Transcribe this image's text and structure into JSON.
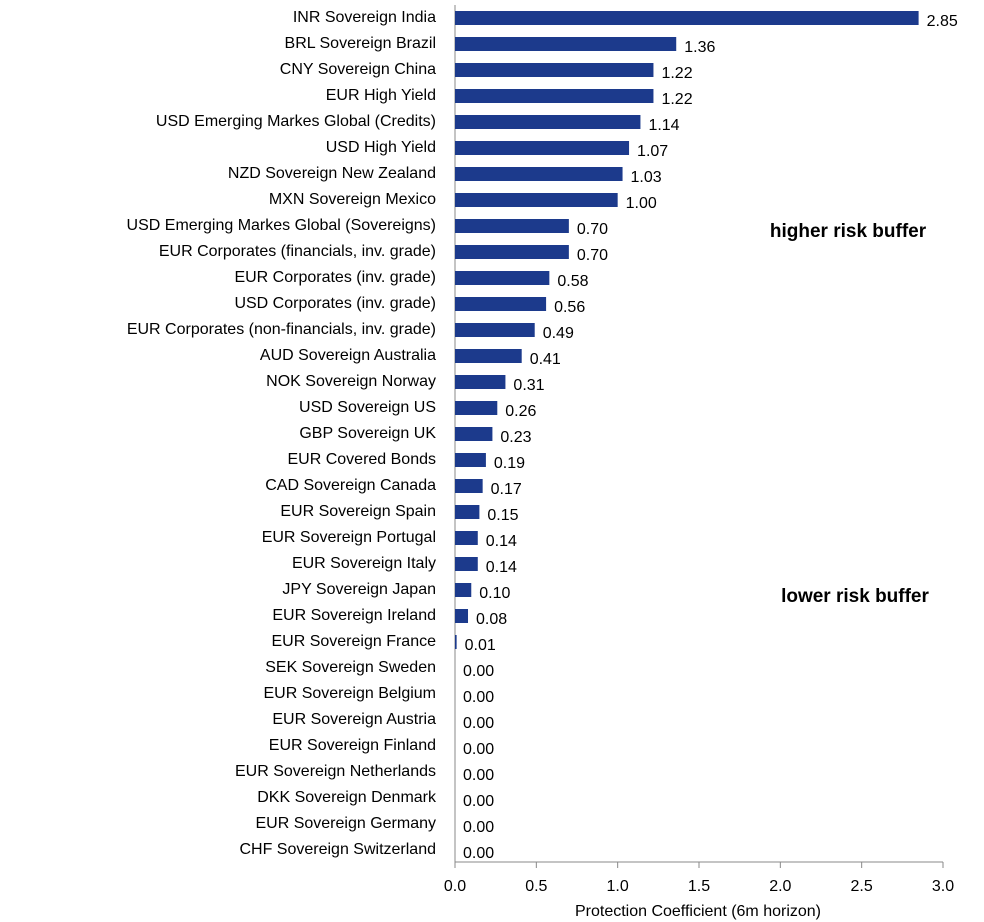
{
  "chart_data": {
    "type": "hbar",
    "categories": [
      "INR Sovereign India",
      "BRL Sovereign Brazil",
      "CNY Sovereign China",
      "EUR High Yield",
      "USD Emerging Markes Global (Credits)",
      "USD High Yield",
      "NZD Sovereign New Zealand",
      "MXN Sovereign Mexico",
      "USD Emerging Markes Global (Sovereigns)",
      "EUR Corporates (financials, inv. grade)",
      "EUR Corporates (inv. grade)",
      "USD Corporates (inv. grade)",
      "EUR Corporates (non-financials, inv. grade)",
      "AUD Sovereign Australia",
      "NOK Sovereign Norway",
      "USD Sovereign US",
      "GBP Sovereign UK",
      "EUR Covered Bonds",
      "CAD Sovereign Canada",
      "EUR Sovereign Spain",
      "EUR Sovereign Portugal",
      "EUR Sovereign Italy",
      "JPY Sovereign Japan",
      "EUR Sovereign Ireland",
      "EUR Sovereign France",
      "SEK Sovereign Sweden",
      "EUR Sovereign Belgium",
      "EUR Sovereign Austria",
      "EUR Sovereign Finland",
      "EUR Sovereign Netherlands",
      "DKK Sovereign Denmark",
      "EUR Sovereign Germany",
      "CHF Sovereign Switzerland"
    ],
    "values": [
      2.85,
      1.36,
      1.22,
      1.22,
      1.14,
      1.07,
      1.03,
      1.0,
      0.7,
      0.7,
      0.58,
      0.56,
      0.49,
      0.41,
      0.31,
      0.26,
      0.23,
      0.19,
      0.17,
      0.15,
      0.14,
      0.14,
      0.1,
      0.08,
      0.01,
      0,
      0,
      0,
      0,
      0,
      0,
      0,
      0
    ],
    "value_labels": [
      "2.85",
      "1.36",
      "1.22",
      "1.22",
      "1.14",
      "1.07",
      "1.03",
      "1.00",
      "0.70",
      "0.70",
      "0.58",
      "0.56",
      "0.49",
      "0.41",
      "0.31",
      "0.26",
      "0.23",
      "0.19",
      "0.17",
      "0.15",
      "0.14",
      "0.14",
      "0.10",
      "0.08",
      "0.01",
      "0.00",
      "0.00",
      "0.00",
      "0.00",
      "0.00",
      "0.00",
      "0.00",
      "0.00"
    ],
    "color": "#1c3a8c",
    "xlim": [
      0,
      3
    ],
    "xticks": [
      {
        "value": 0,
        "label": "0.0"
      },
      0.5,
      {
        "value": 1,
        "label": "1.0"
      },
      1.5,
      {
        "value": 2,
        "label": "2.0"
      },
      2.5,
      {
        "value": 3,
        "label": "3.0"
      }
    ],
    "xlabel": "Protection Coefficient (6m horizon)",
    "annotations": [
      "higher risk buffer",
      "lower risk buffer"
    ],
    "annotation_color": "#ff0000"
  }
}
